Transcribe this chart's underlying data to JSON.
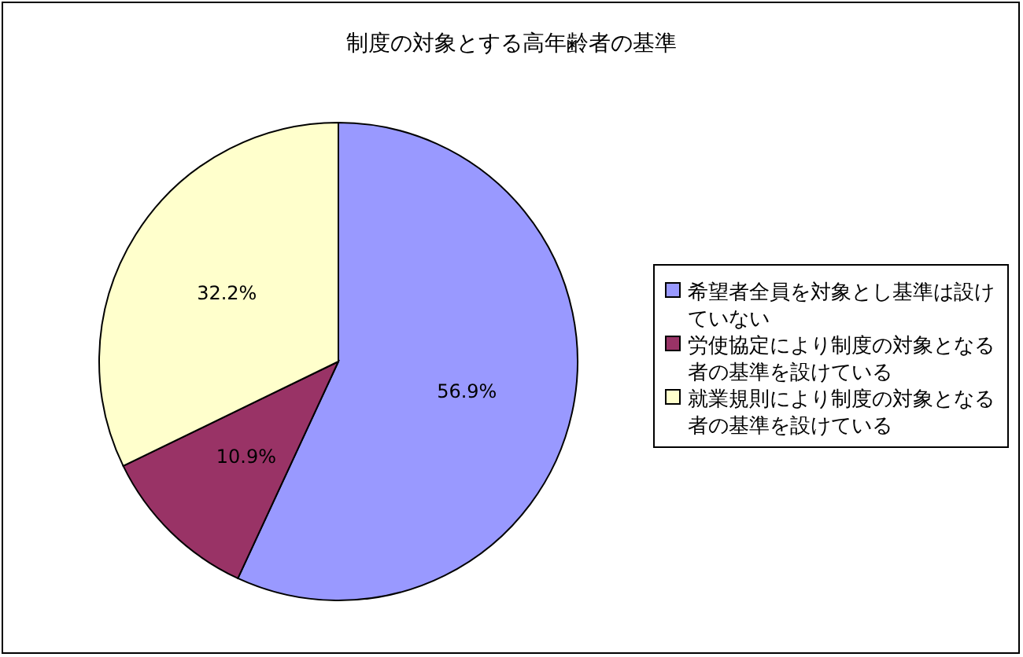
{
  "chart_data": {
    "type": "pie",
    "title": "制度の対象とする高年齢者の基準",
    "categories": [
      "希望者全員を対象とし基準は設けていない",
      "労使協定により制度の対象となる者の基準を設けている",
      "就業規則により制度の対象となる者の基準を設けている"
    ],
    "values": [
      56.9,
      10.9,
      32.2
    ],
    "colors": [
      "#9999ff",
      "#993366",
      "#ffffcc"
    ],
    "value_labels": [
      "56.9%",
      "10.9%",
      "32.2%"
    ],
    "legend": "right"
  }
}
